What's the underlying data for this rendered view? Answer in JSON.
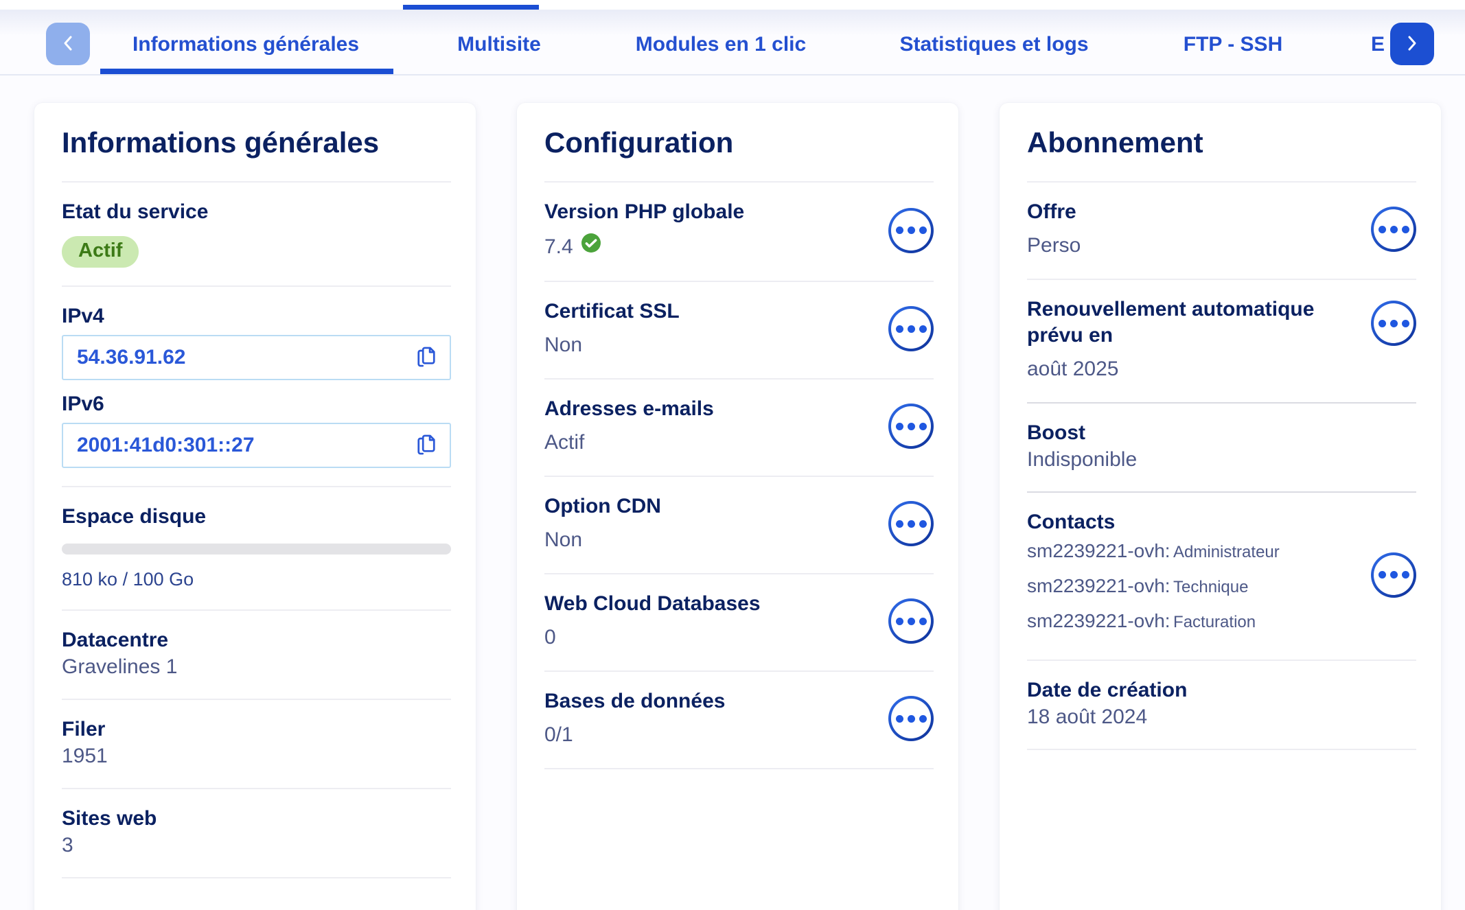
{
  "colors": {
    "accent_blue": "#1b4ed3",
    "tab_blue": "#2450d0",
    "heading_navy": "#0b2161",
    "value_slate": "#4d5887",
    "badge_green_bg": "#cbe9b1",
    "badge_green_text": "#3c7a16",
    "check_green": "#4ba33b",
    "ip_blue": "#2a58d8"
  },
  "tabs": {
    "left_scroll_aria": "previous tabs",
    "right_scroll_aria": "next tabs",
    "items": [
      {
        "label": "Informations générales",
        "active": true
      },
      {
        "label": "Multisite"
      },
      {
        "label": "Modules en 1 clic"
      },
      {
        "label": "Statistiques et logs"
      },
      {
        "label": "FTP - SSH"
      },
      {
        "label": "E"
      }
    ]
  },
  "cards": {
    "general": {
      "title": "Informations générales",
      "service_state_label": "Etat du service",
      "service_state_value": "Actif",
      "ipv4_label": "IPv4",
      "ipv4_value": "54.36.91.62",
      "ipv6_label": "IPv6",
      "ipv6_value": "2001:41d0:301::27",
      "disk_label": "Espace disque",
      "disk_usage": "810 ko / 100 Go",
      "disk_percent": 0,
      "datacenter_label": "Datacentre",
      "datacenter_value": "Gravelines 1",
      "filer_label": "Filer",
      "filer_value": "1951",
      "sites_label": "Sites web",
      "sites_value": "3"
    },
    "configuration": {
      "title": "Configuration",
      "rows": [
        {
          "label": "Version PHP globale",
          "value": "7.4"
        },
        {
          "label": "Certificat SSL",
          "value": "Non"
        },
        {
          "label": "Adresses e-mails",
          "value": "Actif"
        },
        {
          "label": "Option CDN",
          "value": "Non"
        },
        {
          "label": "Web Cloud Databases",
          "value": "0"
        },
        {
          "label": "Bases de données",
          "value": "0/1"
        }
      ]
    },
    "subscription": {
      "title": "Abonnement",
      "offer_label": "Offre",
      "offer_value": "Perso",
      "renewal_label": "Renouvellement automatique prévu en",
      "renewal_value": "août 2025",
      "boost_label": "Boost",
      "boost_value": "Indisponible",
      "contacts_label": "Contacts",
      "contacts": [
        {
          "nic": "sm2239221-ovh:",
          "role": "Administrateur"
        },
        {
          "nic": "sm2239221-ovh:",
          "role": "Technique"
        },
        {
          "nic": "sm2239221-ovh:",
          "role": "Facturation"
        }
      ],
      "creation_label": "Date de création",
      "creation_value": "18 août 2024"
    }
  }
}
